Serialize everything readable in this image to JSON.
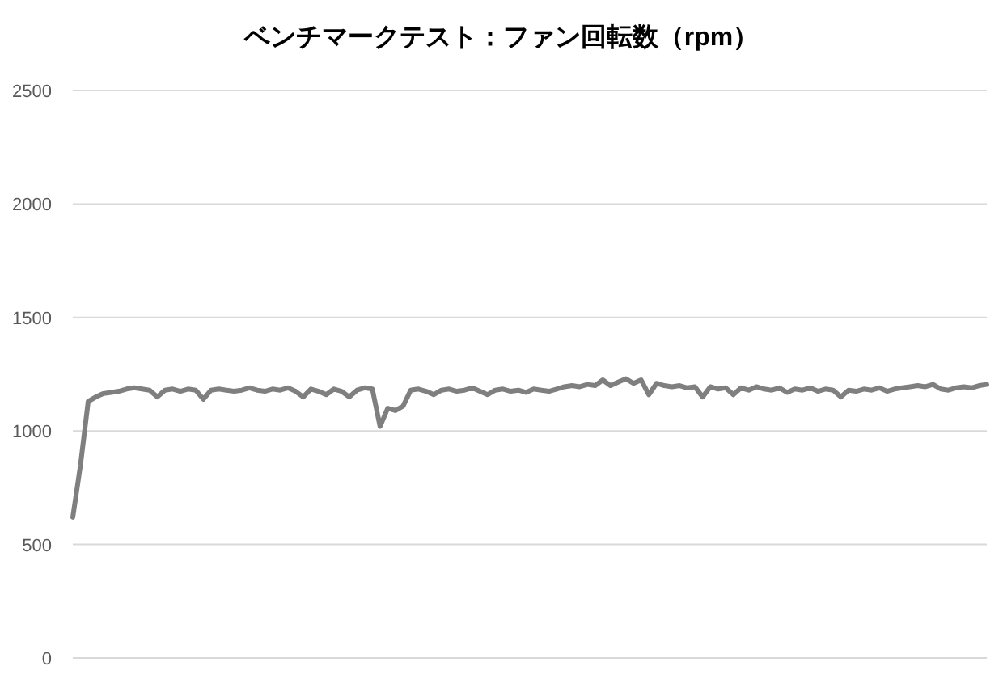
{
  "chart_data": {
    "type": "line",
    "title": "ベンチマークテスト：ファン回転数（rpm）",
    "categories": [
      null,
      null,
      null,
      null,
      null,
      null,
      null,
      null,
      null,
      null,
      null,
      null,
      null,
      null,
      null,
      null,
      null,
      null,
      null,
      null,
      null,
      null,
      null,
      null,
      null,
      null,
      null,
      null,
      null,
      null,
      null,
      null,
      null,
      null,
      null,
      null,
      null,
      null,
      null,
      null,
      null,
      null,
      null,
      null,
      null,
      null,
      null,
      null,
      null,
      null,
      null,
      null,
      null,
      null,
      null,
      null,
      null,
      null,
      null,
      null,
      null,
      null,
      null,
      null,
      null,
      null,
      null,
      null,
      null,
      null,
      null,
      null,
      null,
      null,
      null,
      null,
      null,
      null,
      null,
      null,
      null,
      null,
      null,
      null,
      null,
      null,
      null,
      null,
      null,
      null,
      null,
      null,
      null,
      null,
      null,
      null,
      null,
      null,
      null,
      null,
      null,
      null,
      null,
      null,
      null,
      null,
      null,
      null,
      null,
      null,
      null,
      null,
      null,
      null,
      null,
      null,
      null,
      null,
      null,
      null
    ],
    "values": [
      620,
      850,
      1130,
      1150,
      1165,
      1170,
      1175,
      1185,
      1190,
      1185,
      1180,
      1150,
      1180,
      1185,
      1175,
      1185,
      1180,
      1140,
      1180,
      1185,
      1180,
      1175,
      1180,
      1190,
      1180,
      1175,
      1185,
      1180,
      1190,
      1175,
      1150,
      1185,
      1175,
      1160,
      1185,
      1175,
      1150,
      1180,
      1190,
      1185,
      1020,
      1100,
      1090,
      1110,
      1180,
      1185,
      1175,
      1160,
      1180,
      1185,
      1175,
      1180,
      1190,
      1175,
      1160,
      1180,
      1185,
      1175,
      1180,
      1170,
      1185,
      1180,
      1175,
      1185,
      1195,
      1200,
      1195,
      1205,
      1200,
      1225,
      1200,
      1215,
      1230,
      1210,
      1225,
      1160,
      1210,
      1200,
      1195,
      1200,
      1190,
      1195,
      1150,
      1195,
      1185,
      1190,
      1160,
      1190,
      1180,
      1195,
      1185,
      1180,
      1190,
      1170,
      1185,
      1180,
      1190,
      1175,
      1185,
      1180,
      1150,
      1180,
      1175,
      1185,
      1180,
      1190,
      1175,
      1185,
      1190,
      1195,
      1200,
      1195,
      1205,
      1185,
      1180,
      1190,
      1195,
      1190,
      1200,
      1205
    ],
    "color": "#7f7f7f",
    "ylim": [
      0,
      2500
    ],
    "yticks": [
      0,
      500,
      1000,
      1500,
      2000,
      2500
    ],
    "grid": "y",
    "tick_labels": "y"
  }
}
